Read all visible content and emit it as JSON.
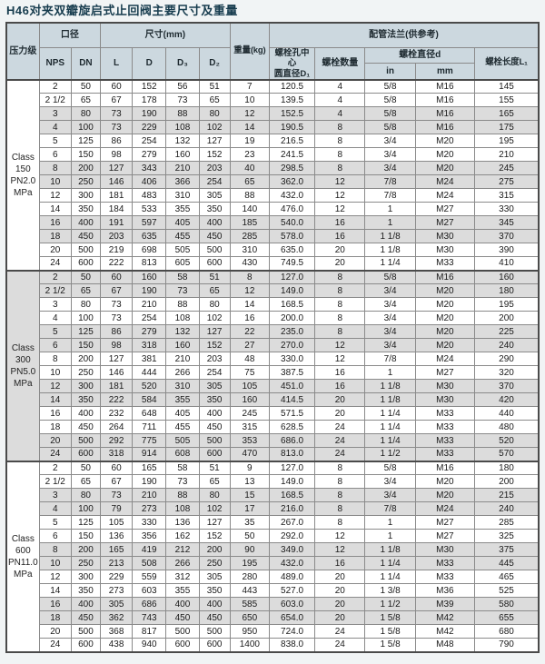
{
  "title": "H46对夹双瓣旋启式止回阀主要尺寸及重量",
  "colors": {
    "title": "#173c4e",
    "header_bg": "#ccd8df",
    "row_alt_bg": "#dcdcdc",
    "grid_line": "#8a8a8a",
    "frame_line": "#4a4a4a"
  },
  "table": {
    "headers": {
      "pressure_class": "压力级",
      "bore": "口径",
      "nps": "NPS",
      "dn": "DN",
      "dims": "尺寸(mm)",
      "l": "L",
      "d": "D",
      "d3": "D₃",
      "d2": "D₂",
      "weight": "重量(kg)",
      "flange": "配管法兰(供参考)",
      "bolt_circle": "螺栓孔中心\n圆直径D₁",
      "bolt_qty": "螺栓数量",
      "bolt_dia": "螺栓直径d",
      "unit_in": "in",
      "unit_mm": "mm",
      "bolt_len": "螺栓长度L₁"
    },
    "sections": [
      {
        "class_label": "Class\n150\nPN2.0\nMPa",
        "rows": [
          [
            "2",
            "50",
            "60",
            "152",
            "56",
            "51",
            "7",
            "120.5",
            "4",
            "5/8",
            "M16",
            "145"
          ],
          [
            "2 1/2",
            "65",
            "67",
            "178",
            "73",
            "65",
            "10",
            "139.5",
            "4",
            "5/8",
            "M16",
            "155"
          ],
          [
            "3",
            "80",
            "73",
            "190",
            "88",
            "80",
            "12",
            "152.5",
            "4",
            "5/8",
            "M16",
            "165"
          ],
          [
            "4",
            "100",
            "73",
            "229",
            "108",
            "102",
            "14",
            "190.5",
            "8",
            "5/8",
            "M16",
            "175"
          ],
          [
            "5",
            "125",
            "86",
            "254",
            "132",
            "127",
            "19",
            "216.5",
            "8",
            "3/4",
            "M20",
            "195"
          ],
          [
            "6",
            "150",
            "98",
            "279",
            "160",
            "152",
            "23",
            "241.5",
            "8",
            "3/4",
            "M20",
            "210"
          ],
          [
            "8",
            "200",
            "127",
            "343",
            "210",
            "203",
            "40",
            "298.5",
            "8",
            "3/4",
            "M20",
            "245"
          ],
          [
            "10",
            "250",
            "146",
            "406",
            "366",
            "254",
            "65",
            "362.0",
            "12",
            "7/8",
            "M24",
            "275"
          ],
          [
            "12",
            "300",
            "181",
            "483",
            "310",
            "305",
            "88",
            "432.0",
            "12",
            "7/8",
            "M24",
            "315"
          ],
          [
            "14",
            "350",
            "184",
            "533",
            "355",
            "350",
            "140",
            "476.0",
            "12",
            "1",
            "M27",
            "330"
          ],
          [
            "16",
            "400",
            "191",
            "597",
            "405",
            "400",
            "185",
            "540.0",
            "16",
            "1",
            "M27",
            "345"
          ],
          [
            "18",
            "450",
            "203",
            "635",
            "455",
            "450",
            "285",
            "578.0",
            "16",
            "1 1/8",
            "M30",
            "370"
          ],
          [
            "20",
            "500",
            "219",
            "698",
            "505",
            "500",
            "310",
            "635.0",
            "20",
            "1 1/8",
            "M30",
            "390"
          ],
          [
            "24",
            "600",
            "222",
            "813",
            "605",
            "600",
            "430",
            "749.5",
            "20",
            "1 1/4",
            "M33",
            "410"
          ]
        ]
      },
      {
        "class_label": "Class\n300\nPN5.0\nMPa",
        "rows": [
          [
            "2",
            "50",
            "60",
            "160",
            "58",
            "51",
            "8",
            "127.0",
            "8",
            "5/8",
            "M16",
            "160"
          ],
          [
            "2 1/2",
            "65",
            "67",
            "190",
            "73",
            "65",
            "12",
            "149.0",
            "8",
            "3/4",
            "M20",
            "180"
          ],
          [
            "3",
            "80",
            "73",
            "210",
            "88",
            "80",
            "14",
            "168.5",
            "8",
            "3/4",
            "M20",
            "195"
          ],
          [
            "4",
            "100",
            "73",
            "254",
            "108",
            "102",
            "16",
            "200.0",
            "8",
            "3/4",
            "M20",
            "200"
          ],
          [
            "5",
            "125",
            "86",
            "279",
            "132",
            "127",
            "22",
            "235.0",
            "8",
            "3/4",
            "M20",
            "225"
          ],
          [
            "6",
            "150",
            "98",
            "318",
            "160",
            "152",
            "27",
            "270.0",
            "12",
            "3/4",
            "M20",
            "240"
          ],
          [
            "8",
            "200",
            "127",
            "381",
            "210",
            "203",
            "48",
            "330.0",
            "12",
            "7/8",
            "M24",
            "290"
          ],
          [
            "10",
            "250",
            "146",
            "444",
            "266",
            "254",
            "75",
            "387.5",
            "16",
            "1",
            "M27",
            "320"
          ],
          [
            "12",
            "300",
            "181",
            "520",
            "310",
            "305",
            "105",
            "451.0",
            "16",
            "1 1/8",
            "M30",
            "370"
          ],
          [
            "14",
            "350",
            "222",
            "584",
            "355",
            "350",
            "160",
            "414.5",
            "20",
            "1 1/8",
            "M30",
            "420"
          ],
          [
            "16",
            "400",
            "232",
            "648",
            "405",
            "400",
            "245",
            "571.5",
            "20",
            "1 1/4",
            "M33",
            "440"
          ],
          [
            "18",
            "450",
            "264",
            "711",
            "455",
            "450",
            "315",
            "628.5",
            "24",
            "1 1/4",
            "M33",
            "480"
          ],
          [
            "20",
            "500",
            "292",
            "775",
            "505",
            "500",
            "353",
            "686.0",
            "24",
            "1 1/4",
            "M33",
            "520"
          ],
          [
            "24",
            "600",
            "318",
            "914",
            "608",
            "600",
            "470",
            "813.0",
            "24",
            "1 1/2",
            "M33",
            "570"
          ]
        ]
      },
      {
        "class_label": "Class\n600\nPN11.0\nMPa",
        "rows": [
          [
            "2",
            "50",
            "60",
            "165",
            "58",
            "51",
            "9",
            "127.0",
            "8",
            "5/8",
            "M16",
            "180"
          ],
          [
            "2 1/2",
            "65",
            "67",
            "190",
            "73",
            "65",
            "13",
            "149.0",
            "8",
            "3/4",
            "M20",
            "200"
          ],
          [
            "3",
            "80",
            "73",
            "210",
            "88",
            "80",
            "15",
            "168.5",
            "8",
            "3/4",
            "M20",
            "215"
          ],
          [
            "4",
            "100",
            "79",
            "273",
            "108",
            "102",
            "17",
            "216.0",
            "8",
            "7/8",
            "M24",
            "240"
          ],
          [
            "5",
            "125",
            "105",
            "330",
            "136",
            "127",
            "35",
            "267.0",
            "8",
            "1",
            "M27",
            "285"
          ],
          [
            "6",
            "150",
            "136",
            "356",
            "162",
            "152",
            "50",
            "292.0",
            "12",
            "1",
            "M27",
            "325"
          ],
          [
            "8",
            "200",
            "165",
            "419",
            "212",
            "200",
            "90",
            "349.0",
            "12",
            "1 1/8",
            "M30",
            "375"
          ],
          [
            "10",
            "250",
            "213",
            "508",
            "266",
            "250",
            "195",
            "432.0",
            "16",
            "1 1/4",
            "M33",
            "445"
          ],
          [
            "12",
            "300",
            "229",
            "559",
            "312",
            "305",
            "280",
            "489.0",
            "20",
            "1 1/4",
            "M33",
            "465"
          ],
          [
            "14",
            "350",
            "273",
            "603",
            "355",
            "350",
            "443",
            "527.0",
            "20",
            "1 3/8",
            "M36",
            "525"
          ],
          [
            "16",
            "400",
            "305",
            "686",
            "400",
            "400",
            "585",
            "603.0",
            "20",
            "1 1/2",
            "M39",
            "580"
          ],
          [
            "18",
            "450",
            "362",
            "743",
            "450",
            "450",
            "650",
            "654.0",
            "20",
            "1 5/8",
            "M42",
            "655"
          ],
          [
            "20",
            "500",
            "368",
            "817",
            "500",
            "500",
            "950",
            "724.0",
            "24",
            "1 5/8",
            "M42",
            "680"
          ],
          [
            "24",
            "600",
            "438",
            "940",
            "600",
            "600",
            "1400",
            "838.0",
            "24",
            "1 5/8",
            "M48",
            "790"
          ]
        ]
      }
    ]
  }
}
